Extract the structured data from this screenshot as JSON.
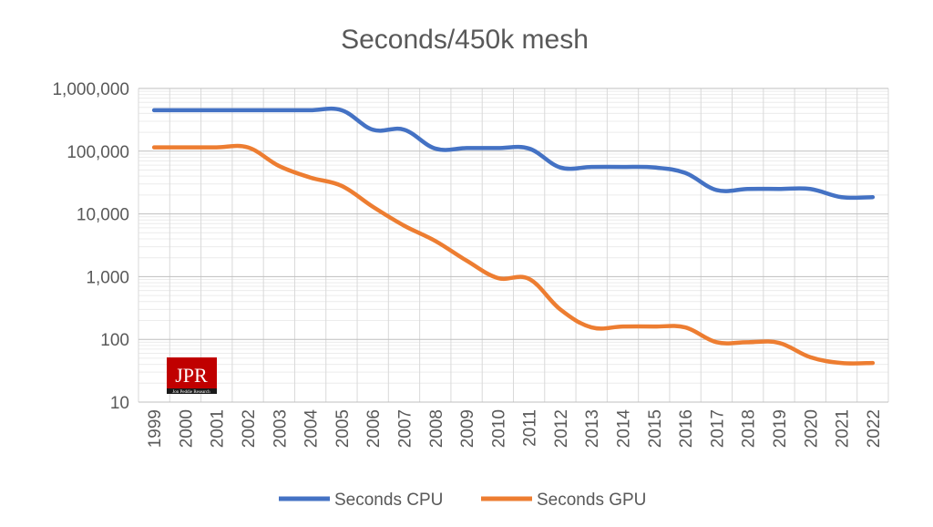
{
  "chart_data": {
    "type": "line",
    "title": "Seconds/450k mesh",
    "x": [
      "1999",
      "2000",
      "2001",
      "2002",
      "2003",
      "2004",
      "2005",
      "2006",
      "2007",
      "2008",
      "2009",
      "2010",
      "2011",
      "2012",
      "2013",
      "2014",
      "2015",
      "2016",
      "2017",
      "2018",
      "2019",
      "2020",
      "2021",
      "2022"
    ],
    "y_scale": "log",
    "ylim": [
      10,
      1000000
    ],
    "y_ticks": [
      10,
      100,
      1000,
      10000,
      100000,
      1000000
    ],
    "y_tick_labels": [
      "10",
      "100",
      "1,000",
      "10,000",
      "100,000",
      "1,000,000"
    ],
    "grid": true,
    "legend_position": "bottom",
    "series": [
      {
        "name": "Seconds CPU",
        "color": "#4472C4",
        "values": [
          450000,
          450000,
          450000,
          450000,
          450000,
          450000,
          450000,
          220000,
          220000,
          110000,
          112000,
          112000,
          110000,
          55000,
          56000,
          56000,
          55000,
          45000,
          24000,
          25000,
          25000,
          25000,
          18500,
          18500
        ]
      },
      {
        "name": "Seconds GPU",
        "color": "#ED7D31",
        "values": [
          115000,
          115000,
          115000,
          115000,
          58000,
          38000,
          28000,
          13000,
          6500,
          3700,
          1800,
          950,
          920,
          300,
          155,
          160,
          160,
          155,
          90,
          90,
          88,
          52,
          42,
          42
        ]
      }
    ]
  },
  "logo": {
    "text": "JPR",
    "subtext": "Jon Peddie Research",
    "color": "#C00000"
  }
}
